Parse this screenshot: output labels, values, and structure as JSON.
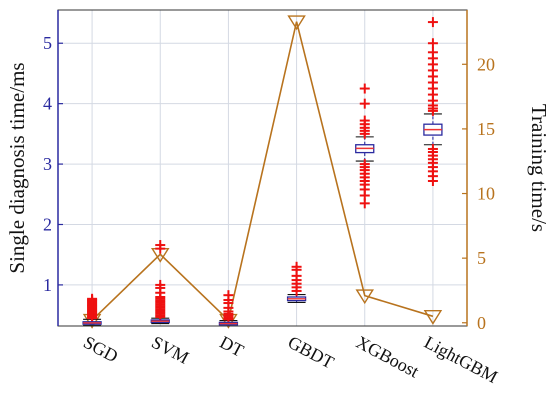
{
  "chart_data": {
    "type": "box-with-line",
    "categories": [
      "SGD",
      "SVM",
      "DT",
      "GBDT",
      "XGBoost",
      "LightGBM"
    ],
    "ylabel_left": "Single diagnosis time/ms",
    "ylabel_right": "Training time/s",
    "ylim_left": [
      0.32,
      5.55
    ],
    "ylim_right": [
      -0.25,
      24.2
    ],
    "yticks_left": [
      1,
      2,
      3,
      4,
      5
    ],
    "yticks_right": [
      0,
      5,
      10,
      15,
      20
    ],
    "grid": true,
    "left_axis_color": "#2a2aa0",
    "right_axis_color": "#b8731e",
    "box_color": "#2a2aa0",
    "median_color": "#ee3333",
    "outlier_color": "#ee1111",
    "line_color": "#b8731e",
    "boxes": [
      {
        "q1": 0.35,
        "median": 0.37,
        "q3": 0.39,
        "whisker_low": 0.33,
        "whisker_high": 0.43,
        "outliers": [
          0.45,
          0.47,
          0.49,
          0.51,
          0.53,
          0.55,
          0.57,
          0.59,
          0.61,
          0.63,
          0.65,
          0.67,
          0.69,
          0.71,
          0.73,
          0.75,
          0.77
        ]
      },
      {
        "q1": 0.38,
        "median": 0.4,
        "q3": 0.42,
        "whisker_low": 0.36,
        "whisker_high": 0.45,
        "outliers": [
          0.47,
          0.5,
          0.53,
          0.56,
          0.59,
          0.62,
          0.65,
          0.68,
          0.71,
          0.74,
          0.77,
          0.8,
          0.87,
          0.95,
          1.0,
          1.6,
          1.66
        ]
      },
      {
        "q1": 0.34,
        "median": 0.36,
        "q3": 0.38,
        "whisker_low": 0.32,
        "whisker_high": 0.41,
        "outliers": [
          0.43,
          0.46,
          0.49,
          0.52,
          0.56,
          0.62,
          0.7,
          0.75,
          0.83
        ]
      },
      {
        "q1": 0.74,
        "median": 0.77,
        "q3": 0.8,
        "whisker_low": 0.71,
        "whisker_high": 0.84,
        "outliers": [
          0.9,
          0.96,
          1.02,
          1.08,
          1.15,
          1.25,
          1.3
        ]
      },
      {
        "q1": 3.19,
        "median": 3.26,
        "q3": 3.32,
        "whisker_low": 3.05,
        "whisker_high": 3.45,
        "outliers": [
          2.35,
          2.48,
          2.58,
          2.66,
          2.72,
          2.78,
          2.84,
          2.9,
          2.95,
          3.0,
          3.5,
          3.55,
          3.6,
          3.66,
          3.72,
          4.0,
          4.25
        ]
      },
      {
        "q1": 3.48,
        "median": 3.57,
        "q3": 3.66,
        "whisker_low": 3.32,
        "whisker_high": 3.83,
        "outliers": [
          2.72,
          2.8,
          2.88,
          2.95,
          3.02,
          3.08,
          3.14,
          3.2,
          3.25,
          3.88,
          3.92,
          3.97,
          4.05,
          4.15,
          4.25,
          4.35,
          4.45,
          4.55,
          4.65,
          4.75,
          4.85,
          5.0,
          5.35
        ]
      }
    ],
    "training_time": [
      0.2,
      5.3,
      0.2,
      23.3,
      2.1,
      0.5
    ]
  }
}
